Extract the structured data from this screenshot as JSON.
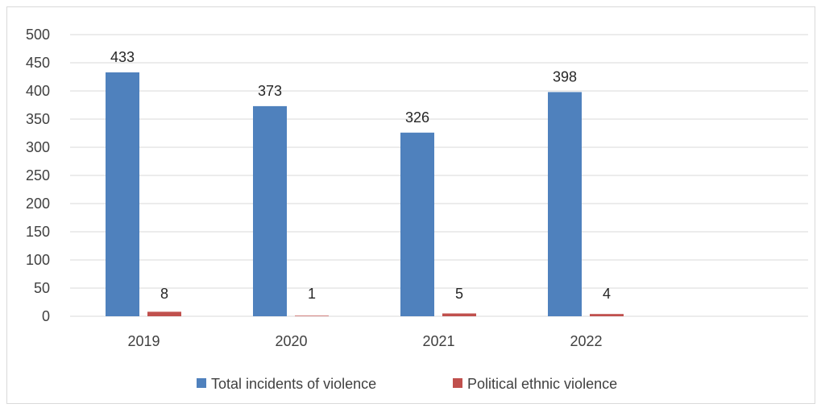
{
  "chart_data": {
    "type": "bar",
    "categories": [
      "2019",
      "2020",
      "2021",
      "2022"
    ],
    "series": [
      {
        "name": "Total incidents of violence",
        "values": [
          433,
          373,
          326,
          398
        ],
        "color": "#4f81bd"
      },
      {
        "name": "Political ethnic violence",
        "values": [
          8,
          1,
          5,
          4
        ],
        "color": "#c0504d"
      }
    ],
    "ylim": [
      0,
      500
    ],
    "yticks": [
      "0",
      "50",
      "100",
      "150",
      "200",
      "250",
      "300",
      "350",
      "400",
      "450",
      "500"
    ],
    "grid": true,
    "legend_position": "bottom",
    "title": "",
    "xlabel": "",
    "ylabel": ""
  },
  "colors": {
    "gridline": "#d9d9d9",
    "axis_text": "#404040"
  }
}
